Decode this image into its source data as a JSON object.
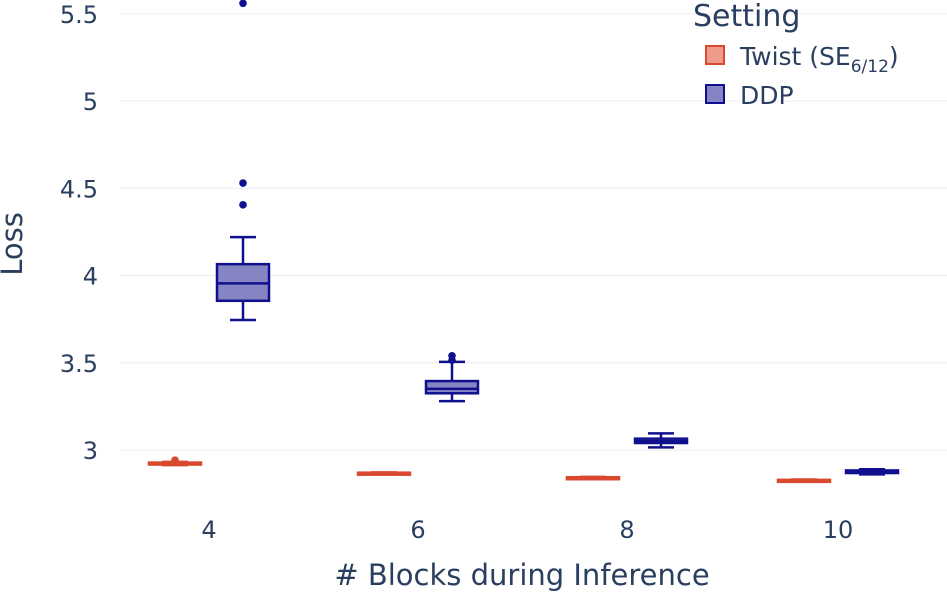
{
  "chart_data": {
    "type": "box",
    "xlabel": "# Blocks during Inference",
    "ylabel": "Loss",
    "ylim": [
      2.63,
      5.6
    ],
    "yticks": [
      3,
      3.5,
      4,
      4.5,
      5,
      5.5
    ],
    "ytick_labels": [
      "3",
      "3.5",
      "4",
      "4.5",
      "5",
      "5.5"
    ],
    "categories": [
      "4",
      "6",
      "8",
      "10"
    ],
    "grid": true,
    "legend": {
      "title": "Setting",
      "position": "top-right"
    },
    "series": [
      {
        "name": "Twist (SE6/12)",
        "label_main": "Twist (SE",
        "label_sub": "6/12",
        "label_tail": ")",
        "color": "#d9492f",
        "fill": "#ee9b8c",
        "boxes": [
          {
            "category": "4",
            "min": 2.913,
            "q1": 2.918,
            "median": 2.923,
            "q3": 2.928,
            "max": 2.932,
            "outliers": [
              2.942
            ]
          },
          {
            "category": "6",
            "min": 2.864,
            "q1": 2.866,
            "median": 2.868,
            "q3": 2.87,
            "max": 2.872,
            "outliers": []
          },
          {
            "category": "8",
            "min": 2.838,
            "q1": 2.84,
            "median": 2.842,
            "q3": 2.844,
            "max": 2.846,
            "outliers": []
          },
          {
            "category": "10",
            "min": 2.823,
            "q1": 2.825,
            "median": 2.827,
            "q3": 2.829,
            "max": 2.831,
            "outliers": []
          }
        ]
      },
      {
        "name": "DDP",
        "label_main": "DDP",
        "label_sub": "",
        "label_tail": "",
        "color": "#10108f",
        "fill": "#8585c4",
        "boxes": [
          {
            "category": "4",
            "min": 3.745,
            "q1": 3.855,
            "median": 3.955,
            "q3": 4.065,
            "max": 4.22,
            "outliers": [
              4.405,
              4.53,
              5.56
            ]
          },
          {
            "category": "6",
            "min": 3.28,
            "q1": 3.325,
            "median": 3.35,
            "q3": 3.395,
            "max": 3.505,
            "outliers": [
              3.515,
              3.54
            ]
          },
          {
            "category": "8",
            "min": 3.015,
            "q1": 3.04,
            "median": 3.05,
            "q3": 3.065,
            "max": 3.095,
            "outliers": []
          },
          {
            "category": "10",
            "min": 2.86,
            "q1": 2.868,
            "median": 2.875,
            "q3": 2.883,
            "max": 2.89,
            "outliers": []
          }
        ]
      }
    ]
  }
}
